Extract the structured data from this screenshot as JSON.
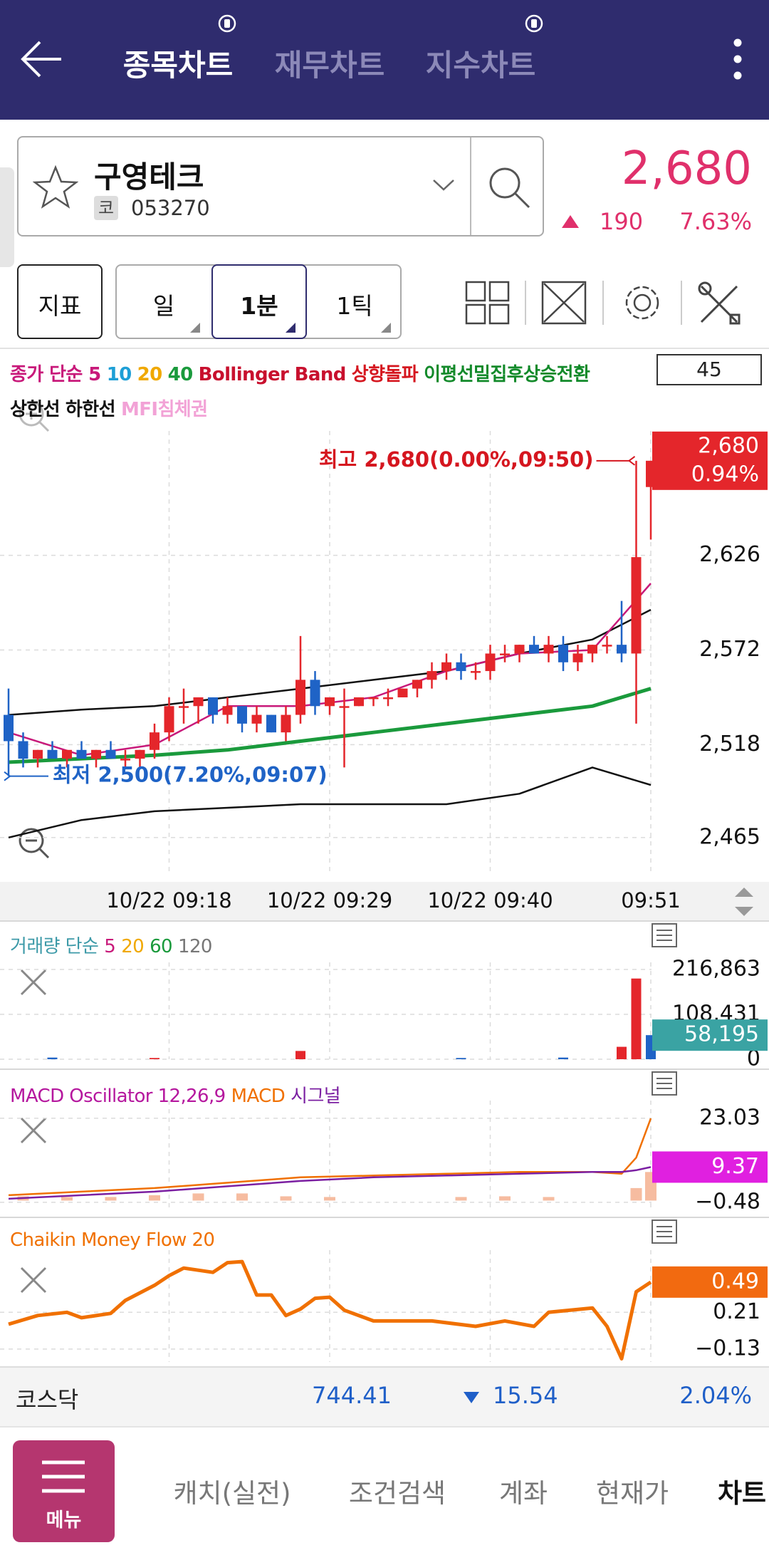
{
  "header": {
    "tabs": [
      "종목차트",
      "재무차트",
      "지수차트"
    ]
  },
  "stock": {
    "name": "구영테크",
    "market": "코",
    "code": "053270",
    "price": "2,680",
    "change": "190",
    "change_rate": "7.63%"
  },
  "toolbar": {
    "indicator": "지표",
    "periods": [
      "일",
      "1분",
      "1틱"
    ]
  },
  "chart_data": [
    {
      "type": "candlestick",
      "legend": [
        {
          "name": "종가 단순 5",
          "color": "#c8197a"
        },
        {
          "name": "10",
          "color": "#1e9fd6"
        },
        {
          "name": "20",
          "color": "#f0a800"
        },
        {
          "name": "40",
          "color": "#1a9a3c"
        },
        {
          "name": "Bollinger Band",
          "color": "#c8102e"
        },
        {
          "name": "상향돌파",
          "color": "#d5161f"
        },
        {
          "name": "이평선밀집후상승전환",
          "color": "#128a2a"
        }
      ],
      "legend2": [
        {
          "name": "상한선",
          "color": "#111111"
        },
        {
          "name": "하한선",
          "color": "#111111"
        },
        {
          "name": "MFI침체권",
          "color": "#f2a2d6"
        }
      ],
      "visible_count": 45,
      "categories": [
        "09:07",
        "09:08",
        "09:09",
        "09:10",
        "09:11",
        "09:12",
        "09:13",
        "09:14",
        "09:15",
        "09:16",
        "09:17",
        "09:18",
        "09:19",
        "09:20",
        "09:21",
        "09:22",
        "09:23",
        "09:24",
        "09:25",
        "09:26",
        "09:27",
        "09:28",
        "09:29",
        "09:30",
        "09:31",
        "09:32",
        "09:33",
        "09:34",
        "09:35",
        "09:36",
        "09:37",
        "09:38",
        "09:39",
        "09:40",
        "09:41",
        "09:42",
        "09:43",
        "09:44",
        "09:45",
        "09:46",
        "09:47",
        "09:48",
        "09:49",
        "09:50",
        "09:51"
      ],
      "open": [
        2535,
        2520,
        2510,
        2515,
        2510,
        2515,
        2510,
        2515,
        2510,
        2510,
        2515,
        2525,
        2540,
        2540,
        2545,
        2535,
        2540,
        2530,
        2535,
        2525,
        2535,
        2555,
        2540,
        2540,
        2540,
        2545,
        2545,
        2545,
        2550,
        2555,
        2560,
        2565,
        2560,
        2560,
        2570,
        2570,
        2575,
        2570,
        2575,
        2565,
        2570,
        2575,
        2575,
        2570,
        2665
      ],
      "high": [
        2550,
        2525,
        2515,
        2520,
        2515,
        2520,
        2515,
        2520,
        2515,
        2515,
        2530,
        2545,
        2550,
        2545,
        2545,
        2545,
        2540,
        2540,
        2535,
        2540,
        2580,
        2560,
        2545,
        2550,
        2545,
        2545,
        2550,
        2550,
        2555,
        2565,
        2570,
        2570,
        2565,
        2575,
        2575,
        2575,
        2580,
        2580,
        2580,
        2575,
        2575,
        2580,
        2600,
        2680,
        2680
      ],
      "low": [
        2500,
        2505,
        2505,
        2510,
        2505,
        2510,
        2505,
        2510,
        2505,
        2505,
        2510,
        2520,
        2530,
        2530,
        2530,
        2530,
        2525,
        2525,
        2525,
        2520,
        2530,
        2535,
        2535,
        2505,
        2540,
        2540,
        2540,
        2545,
        2545,
        2550,
        2555,
        2555,
        2555,
        2555,
        2565,
        2565,
        2570,
        2565,
        2560,
        2560,
        2565,
        2570,
        2565,
        2530,
        2635
      ],
      "close": [
        2520,
        2510,
        2515,
        2510,
        2515,
        2510,
        2515,
        2510,
        2510,
        2515,
        2525,
        2540,
        2540,
        2545,
        2535,
        2540,
        2530,
        2535,
        2525,
        2535,
        2555,
        2540,
        2545,
        2540,
        2545,
        2545,
        2545,
        2550,
        2555,
        2560,
        2565,
        2560,
        2560,
        2570,
        2570,
        2575,
        2570,
        2575,
        2565,
        2570,
        2575,
        2575,
        2570,
        2625,
        2680
      ],
      "up_color": "#e4262b",
      "down_color": "#1f63c6",
      "lines": [
        {
          "color": "#111111",
          "x": [
            "09:07",
            "09:12",
            "09:17",
            "09:22",
            "09:27",
            "09:32",
            "09:37",
            "09:42",
            "09:47",
            "09:51"
          ],
          "values": [
            2535,
            2538,
            2540,
            2545,
            2550,
            2555,
            2560,
            2570,
            2578,
            2595
          ]
        },
        {
          "color": "#111111",
          "x": [
            "09:07",
            "09:12",
            "09:17",
            "09:22",
            "09:27",
            "09:32",
            "09:37",
            "09:42",
            "09:47",
            "09:51"
          ],
          "values": [
            2465,
            2475,
            2480,
            2482,
            2484,
            2484,
            2484,
            2490,
            2505,
            2495
          ]
        },
        {
          "color": "#1a9a3c",
          "x": [
            "09:07",
            "09:12",
            "09:17",
            "09:22",
            "09:27",
            "09:32",
            "09:37",
            "09:42",
            "09:47",
            "09:51"
          ],
          "values": [
            2508,
            2510,
            2512,
            2515,
            2520,
            2525,
            2530,
            2535,
            2540,
            2550
          ]
        },
        {
          "color": "#c8197a",
          "x": [
            "09:07",
            "09:12",
            "09:17",
            "09:22",
            "09:27",
            "09:32",
            "09:37",
            "09:42",
            "09:47",
            "09:51"
          ],
          "values": [
            2525,
            2512,
            2518,
            2540,
            2540,
            2545,
            2560,
            2570,
            2572,
            2610
          ]
        }
      ],
      "xticks": [
        {
          "value": "09:18",
          "label": "10/22 09:18"
        },
        {
          "value": "09:29",
          "label": "10/22 09:29"
        },
        {
          "value": "09:40",
          "label": "10/22 09:40"
        },
        "09:51"
      ],
      "ylim": [
        2445,
        2697
      ],
      "yticks": [
        {
          "value": 2465,
          "label": "2,465"
        },
        {
          "value": 2518,
          "label": "2,518"
        },
        {
          "value": 2572,
          "label": "2,572"
        },
        {
          "value": 2626,
          "label": "2,626"
        }
      ],
      "grid": true,
      "current": {
        "value": 2680,
        "label": "2,680",
        "rate": "0.94%"
      },
      "current_color": "#e4262b",
      "annotations": [
        {
          "text": "최고 2,680(0.00%,09:50)",
          "x": "09:50",
          "y": 2680,
          "color": "#d5161f"
        },
        {
          "text": "최저 2,500(7.20%,09:07)",
          "x": "09:07",
          "y": 2500,
          "color": "#1f63c6"
        }
      ]
    },
    {
      "type": "bar",
      "legend": [
        {
          "name": "거래량 단순",
          "color": "#3d9aa8"
        },
        {
          "name": "5",
          "color": "#c8197a"
        },
        {
          "name": "20",
          "color": "#f0a800"
        },
        {
          "name": "60",
          "color": "#1a9a3c"
        },
        {
          "name": "120",
          "color": "#777777"
        }
      ],
      "x": [
        "09:10",
        "09:17",
        "09:27",
        "09:38",
        "09:45",
        "09:49",
        "09:50",
        "09:51"
      ],
      "values": [
        4000,
        3000,
        20000,
        3000,
        4000,
        30000,
        195000,
        58195
      ],
      "colors": [
        "#1f63c6",
        "#e4262b",
        "#e4262b",
        "#1f63c6",
        "#1f63c6",
        "#e4262b",
        "#e4262b",
        "#1f63c6"
      ],
      "ylim": [
        0,
        216863
      ],
      "yticks": [
        0,
        {
          "value": 108431,
          "label": "108,431"
        },
        {
          "value": 216863,
          "label": "216,863"
        }
      ],
      "grid": true,
      "current": {
        "value": 58195,
        "label": "58,195"
      },
      "current_color": "#3aa3a3"
    },
    {
      "type": "line",
      "legend": [
        {
          "name": "MACD Oscillator 12,26,9",
          "color": "#b5179e"
        },
        {
          "name": "MACD",
          "color": "#f07000"
        },
        {
          "name": "시그널",
          "color": "#7b1fa2"
        }
      ],
      "bars": {
        "color": "#f6bca0",
        "x": [
          "09:08",
          "09:11",
          "09:14",
          "09:17",
          "09:20",
          "09:23",
          "09:26",
          "09:29",
          "09:38",
          "09:41",
          "09:44",
          "09:50",
          "09:51"
        ],
        "values": [
          1.2,
          1.0,
          1.0,
          1.5,
          2.0,
          2.0,
          1.2,
          1.0,
          1.0,
          1.2,
          1.0,
          3.5,
          8
        ]
      },
      "series": [
        {
          "color": "#f07000",
          "x": [
            "09:07",
            "09:12",
            "09:17",
            "09:22",
            "09:27",
            "09:32",
            "09:37",
            "09:42",
            "09:47",
            "09:49",
            "09:50",
            "09:51"
          ],
          "values": [
            1.5,
            2.5,
            3.5,
            5,
            6.5,
            7,
            7.5,
            8,
            8,
            7.5,
            12,
            23
          ]
        },
        {
          "color": "#7b1fa2",
          "x": [
            "09:07",
            "09:12",
            "09:17",
            "09:22",
            "09:27",
            "09:32",
            "09:37",
            "09:42",
            "09:47",
            "09:49",
            "09:50",
            "09:51"
          ],
          "values": [
            0.5,
            1.5,
            2.5,
            4,
            5.5,
            6.5,
            7,
            7.5,
            8,
            8,
            8.5,
            9.37
          ]
        }
      ],
      "ylim": [
        -2.9,
        26
      ],
      "yticks": [
        {
          "value": -0.48,
          "label": "−0.48"
        },
        23.03
      ],
      "grid": true,
      "current": 9.37,
      "current_color": "#e020e0"
    },
    {
      "type": "line",
      "legend": [
        {
          "name": "Chaikin Money Flow 20",
          "color": "#f07000"
        }
      ],
      "series": [
        {
          "color": "#f07000",
          "x": [
            "09:07",
            "09:09",
            "09:11",
            "09:12",
            "09:14",
            "09:15",
            "09:17",
            "09:18",
            "09:19",
            "09:21",
            "09:22",
            "09:23",
            "09:24",
            "09:25",
            "09:26",
            "09:27",
            "09:28",
            "09:29",
            "09:30",
            "09:32",
            "09:36",
            "09:39",
            "09:41",
            "09:43",
            "09:44",
            "09:47",
            "09:48",
            "09:49",
            "09:50",
            "09:51"
          ],
          "values": [
            0.1,
            0.18,
            0.21,
            0.16,
            0.2,
            0.32,
            0.46,
            0.55,
            0.62,
            0.58,
            0.67,
            0.68,
            0.37,
            0.37,
            0.18,
            0.24,
            0.34,
            0.35,
            0.23,
            0.13,
            0.13,
            0.08,
            0.13,
            0.08,
            0.21,
            0.25,
            0.08,
            -0.22,
            0.4,
            0.49
          ]
        }
      ],
      "ylim": [
        -0.25,
        0.72
      ],
      "yticks": [
        {
          "value": -0.13,
          "label": "−0.13"
        },
        0.21
      ],
      "grid": true,
      "current": 0.49,
      "current_color": "#f26a10"
    }
  ],
  "index_bar": {
    "name": "코스닥",
    "value": "744.41",
    "change": "15.54",
    "rate": "2.04%"
  },
  "nav": {
    "menu": "메뉴",
    "items": [
      "캐치(실전)",
      "조건검색",
      "계좌",
      "현재가",
      "차트"
    ]
  }
}
